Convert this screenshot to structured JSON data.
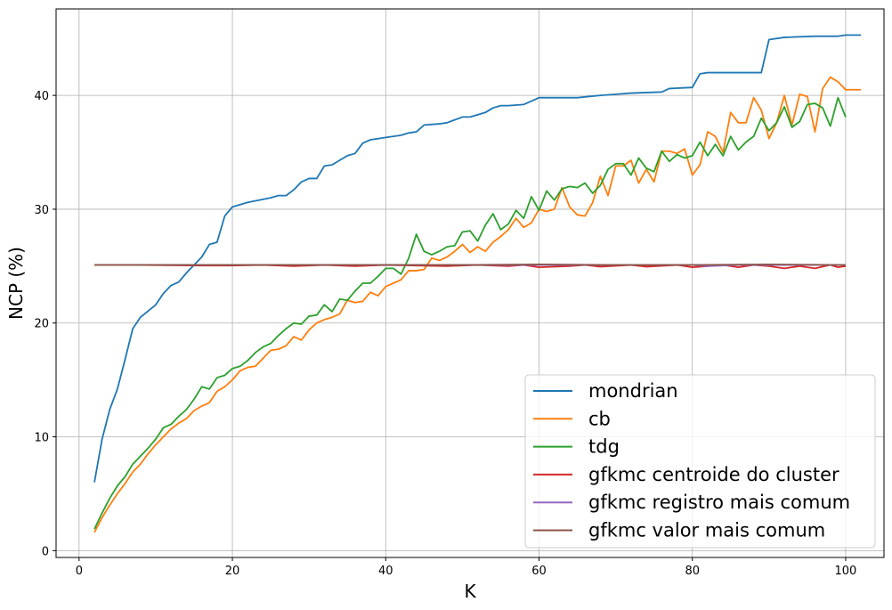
{
  "chart_data": {
    "type": "line",
    "xlabel": "K",
    "ylabel": "NCP (%)",
    "xlim": [
      -3,
      105
    ],
    "ylim": [
      -0.6,
      47.6
    ],
    "xticks": [
      0,
      20,
      40,
      60,
      80,
      100
    ],
    "yticks": [
      0,
      10,
      20,
      30,
      40
    ],
    "xtick_labels": [
      "0",
      "20",
      "40",
      "60",
      "80",
      "100"
    ],
    "ytick_labels": [
      "0",
      "10",
      "20",
      "30",
      "40"
    ],
    "grid": true,
    "legend_position": "lower-right",
    "series": [
      {
        "name": "mondrian",
        "color": "#1f77b4",
        "points": [
          [
            2,
            6.0
          ],
          [
            3,
            9.8
          ],
          [
            4,
            12.4
          ],
          [
            5,
            14.2
          ],
          [
            6,
            16.8
          ],
          [
            7,
            19.5
          ],
          [
            8,
            20.5
          ],
          [
            10,
            21.6
          ],
          [
            11,
            22.6
          ],
          [
            12,
            23.3
          ],
          [
            13,
            23.6
          ],
          [
            14,
            24.4
          ],
          [
            16,
            25.8
          ],
          [
            17,
            26.9
          ],
          [
            18,
            27.1
          ],
          [
            19,
            29.4
          ],
          [
            20,
            30.2
          ],
          [
            22,
            30.6
          ],
          [
            25,
            31.0
          ],
          [
            26,
            31.2
          ],
          [
            27,
            31.2
          ],
          [
            28,
            31.7
          ],
          [
            29,
            32.4
          ],
          [
            30,
            32.7
          ],
          [
            31,
            32.7
          ],
          [
            32,
            33.8
          ],
          [
            33,
            33.9
          ],
          [
            35,
            34.7
          ],
          [
            36,
            34.9
          ],
          [
            37,
            35.8
          ],
          [
            38,
            36.1
          ],
          [
            40,
            36.3
          ],
          [
            42,
            36.5
          ],
          [
            43,
            36.7
          ],
          [
            44,
            36.8
          ],
          [
            45,
            37.4
          ],
          [
            47,
            37.5
          ],
          [
            48,
            37.6
          ],
          [
            50,
            38.1
          ],
          [
            51,
            38.1
          ],
          [
            52,
            38.3
          ],
          [
            53,
            38.5
          ],
          [
            54,
            38.9
          ],
          [
            55,
            39.1
          ],
          [
            56,
            39.1
          ],
          [
            58,
            39.2
          ],
          [
            59,
            39.5
          ],
          [
            60,
            39.8
          ],
          [
            65,
            39.8
          ],
          [
            68,
            40.0
          ],
          [
            70,
            40.1
          ],
          [
            72,
            40.2
          ],
          [
            76,
            40.3
          ],
          [
            77,
            40.6
          ],
          [
            80,
            40.7
          ],
          [
            81,
            41.9
          ],
          [
            82,
            42.0
          ],
          [
            89,
            42.0
          ],
          [
            90,
            44.9
          ],
          [
            92,
            45.1
          ],
          [
            96,
            45.2
          ],
          [
            99,
            45.2
          ],
          [
            100,
            45.3
          ],
          [
            102,
            45.3
          ]
        ]
      },
      {
        "name": "cb",
        "color": "#ff7f0e",
        "points": [
          [
            2,
            1.6
          ],
          [
            3,
            2.9
          ],
          [
            4,
            4.0
          ],
          [
            5,
            5.0
          ],
          [
            6,
            5.9
          ],
          [
            7,
            6.9
          ],
          [
            8,
            7.6
          ],
          [
            9,
            8.5
          ],
          [
            10,
            9.3
          ],
          [
            11,
            10.0
          ],
          [
            12,
            10.7
          ],
          [
            13,
            11.2
          ],
          [
            14,
            11.6
          ],
          [
            15,
            12.3
          ],
          [
            16,
            12.7
          ],
          [
            17,
            13.0
          ],
          [
            18,
            14.0
          ],
          [
            19,
            14.4
          ],
          [
            20,
            15.0
          ],
          [
            21,
            15.8
          ],
          [
            22,
            16.1
          ],
          [
            23,
            16.2
          ],
          [
            24,
            16.9
          ],
          [
            25,
            17.6
          ],
          [
            26,
            17.7
          ],
          [
            27,
            18.0
          ],
          [
            28,
            18.8
          ],
          [
            29,
            18.5
          ],
          [
            30,
            19.4
          ],
          [
            31,
            20.0
          ],
          [
            32,
            20.3
          ],
          [
            33,
            20.5
          ],
          [
            34,
            20.8
          ],
          [
            35,
            22.0
          ],
          [
            36,
            21.8
          ],
          [
            37,
            21.9
          ],
          [
            38,
            22.7
          ],
          [
            39,
            22.4
          ],
          [
            40,
            23.2
          ],
          [
            41,
            23.5
          ],
          [
            42,
            23.8
          ],
          [
            43,
            24.6
          ],
          [
            44,
            24.6
          ],
          [
            45,
            24.7
          ],
          [
            46,
            25.7
          ],
          [
            47,
            25.5
          ],
          [
            48,
            25.8
          ],
          [
            49,
            26.3
          ],
          [
            50,
            26.9
          ],
          [
            51,
            26.2
          ],
          [
            52,
            26.7
          ],
          [
            53,
            26.3
          ],
          [
            54,
            27.1
          ],
          [
            55,
            27.6
          ],
          [
            56,
            28.2
          ],
          [
            57,
            29.2
          ],
          [
            58,
            28.4
          ],
          [
            59,
            28.8
          ],
          [
            60,
            30.0
          ],
          [
            61,
            29.8
          ],
          [
            62,
            30.0
          ],
          [
            63,
            31.9
          ],
          [
            64,
            30.2
          ],
          [
            65,
            29.5
          ],
          [
            66,
            29.4
          ],
          [
            67,
            30.6
          ],
          [
            68,
            32.9
          ],
          [
            69,
            31.2
          ],
          [
            70,
            33.8
          ],
          [
            71,
            33.8
          ],
          [
            72,
            34.3
          ],
          [
            73,
            32.3
          ],
          [
            74,
            33.5
          ],
          [
            75,
            32.4
          ],
          [
            76,
            35.1
          ],
          [
            77,
            35.1
          ],
          [
            78,
            34.9
          ],
          [
            79,
            35.3
          ],
          [
            80,
            33.0
          ],
          [
            81,
            33.9
          ],
          [
            82,
            36.8
          ],
          [
            83,
            36.4
          ],
          [
            84,
            35.0
          ],
          [
            85,
            38.5
          ],
          [
            86,
            37.6
          ],
          [
            87,
            37.6
          ],
          [
            88,
            39.8
          ],
          [
            89,
            38.7
          ],
          [
            90,
            36.2
          ],
          [
            91,
            37.6
          ],
          [
            92,
            40.0
          ],
          [
            93,
            37.4
          ],
          [
            94,
            40.1
          ],
          [
            95,
            39.9
          ],
          [
            96,
            36.8
          ],
          [
            97,
            40.6
          ],
          [
            98,
            41.6
          ],
          [
            99,
            41.2
          ],
          [
            100,
            40.5
          ],
          [
            102,
            40.5
          ]
        ]
      },
      {
        "name": "tdg",
        "color": "#2ca02c",
        "points": [
          [
            2,
            1.9
          ],
          [
            3,
            3.3
          ],
          [
            4,
            4.6
          ],
          [
            5,
            5.7
          ],
          [
            6,
            6.5
          ],
          [
            7,
            7.6
          ],
          [
            8,
            8.3
          ],
          [
            9,
            9.0
          ],
          [
            10,
            9.8
          ],
          [
            11,
            10.8
          ],
          [
            12,
            11.1
          ],
          [
            13,
            11.8
          ],
          [
            14,
            12.4
          ],
          [
            15,
            13.3
          ],
          [
            16,
            14.4
          ],
          [
            17,
            14.2
          ],
          [
            18,
            15.2
          ],
          [
            19,
            15.4
          ],
          [
            20,
            16.0
          ],
          [
            21,
            16.2
          ],
          [
            22,
            16.7
          ],
          [
            23,
            17.4
          ],
          [
            24,
            17.9
          ],
          [
            25,
            18.2
          ],
          [
            26,
            18.9
          ],
          [
            27,
            19.5
          ],
          [
            28,
            20.0
          ],
          [
            29,
            19.9
          ],
          [
            30,
            20.6
          ],
          [
            31,
            20.7
          ],
          [
            32,
            21.6
          ],
          [
            33,
            21.0
          ],
          [
            34,
            22.1
          ],
          [
            35,
            22.0
          ],
          [
            36,
            22.8
          ],
          [
            37,
            23.5
          ],
          [
            38,
            23.5
          ],
          [
            39,
            24.1
          ],
          [
            40,
            24.8
          ],
          [
            41,
            24.8
          ],
          [
            42,
            24.3
          ],
          [
            43,
            25.7
          ],
          [
            44,
            27.8
          ],
          [
            45,
            26.3
          ],
          [
            46,
            26.0
          ],
          [
            47,
            26.3
          ],
          [
            48,
            26.7
          ],
          [
            49,
            26.8
          ],
          [
            50,
            28.0
          ],
          [
            51,
            28.1
          ],
          [
            52,
            27.2
          ],
          [
            53,
            28.6
          ],
          [
            54,
            29.6
          ],
          [
            55,
            28.2
          ],
          [
            56,
            28.7
          ],
          [
            57,
            29.9
          ],
          [
            58,
            29.2
          ],
          [
            59,
            31.1
          ],
          [
            60,
            29.9
          ],
          [
            61,
            31.6
          ],
          [
            62,
            30.8
          ],
          [
            63,
            31.8
          ],
          [
            64,
            32.0
          ],
          [
            65,
            31.9
          ],
          [
            66,
            32.3
          ],
          [
            67,
            31.4
          ],
          [
            68,
            32.1
          ],
          [
            69,
            33.5
          ],
          [
            70,
            34.0
          ],
          [
            71,
            34.0
          ],
          [
            72,
            33.0
          ],
          [
            73,
            34.5
          ],
          [
            74,
            33.6
          ],
          [
            75,
            33.3
          ],
          [
            76,
            35.1
          ],
          [
            77,
            34.2
          ],
          [
            78,
            34.8
          ],
          [
            79,
            34.5
          ],
          [
            80,
            34.7
          ],
          [
            81,
            35.9
          ],
          [
            82,
            34.7
          ],
          [
            83,
            35.7
          ],
          [
            84,
            34.7
          ],
          [
            85,
            36.4
          ],
          [
            86,
            35.2
          ],
          [
            87,
            35.9
          ],
          [
            88,
            36.4
          ],
          [
            89,
            38.0
          ],
          [
            90,
            36.9
          ],
          [
            91,
            37.6
          ],
          [
            92,
            39.0
          ],
          [
            93,
            37.2
          ],
          [
            94,
            37.7
          ],
          [
            95,
            39.2
          ],
          [
            96,
            39.3
          ],
          [
            97,
            38.9
          ],
          [
            98,
            37.3
          ],
          [
            99,
            39.8
          ],
          [
            100,
            38.1
          ]
        ]
      },
      {
        "name": "gfkmc centroide do cluster",
        "color": "#d62728",
        "points": [
          [
            2,
            25.1
          ],
          [
            8,
            25.1
          ],
          [
            16,
            25.05
          ],
          [
            20,
            25.05
          ],
          [
            24,
            25.1
          ],
          [
            28,
            25.0
          ],
          [
            32,
            25.1
          ],
          [
            36,
            25.0
          ],
          [
            40,
            25.1
          ],
          [
            44,
            25.05
          ],
          [
            48,
            25.0
          ],
          [
            52,
            25.1
          ],
          [
            56,
            25.0
          ],
          [
            58,
            25.1
          ],
          [
            60,
            24.9
          ],
          [
            64,
            25.0
          ],
          [
            66,
            25.1
          ],
          [
            68,
            24.95
          ],
          [
            72,
            25.1
          ],
          [
            74,
            24.95
          ],
          [
            78,
            25.1
          ],
          [
            80,
            24.9
          ],
          [
            84,
            25.1
          ],
          [
            86,
            24.9
          ],
          [
            88,
            25.1
          ],
          [
            90,
            25.0
          ],
          [
            92,
            24.8
          ],
          [
            94,
            25.0
          ],
          [
            96,
            24.8
          ],
          [
            98,
            25.1
          ],
          [
            99,
            24.9
          ],
          [
            100,
            25.0
          ]
        ]
      },
      {
        "name": "gfkmc registro mais comum",
        "color": "#9467bd",
        "points": [
          [
            2,
            25.1
          ],
          [
            20,
            25.1
          ],
          [
            40,
            25.1
          ],
          [
            60,
            25.1
          ],
          [
            80,
            25.1
          ],
          [
            82,
            25.0
          ],
          [
            86,
            25.1
          ],
          [
            100,
            25.1
          ]
        ]
      },
      {
        "name": "gfkmc valor mais comum",
        "color": "#8c564b",
        "points": [
          [
            2,
            25.1
          ],
          [
            10,
            25.1
          ],
          [
            20,
            25.1
          ],
          [
            30,
            25.1
          ],
          [
            40,
            25.1
          ],
          [
            50,
            25.1
          ],
          [
            60,
            25.15
          ],
          [
            70,
            25.1
          ],
          [
            80,
            25.1
          ],
          [
            90,
            25.15
          ],
          [
            100,
            25.1
          ]
        ]
      }
    ]
  }
}
